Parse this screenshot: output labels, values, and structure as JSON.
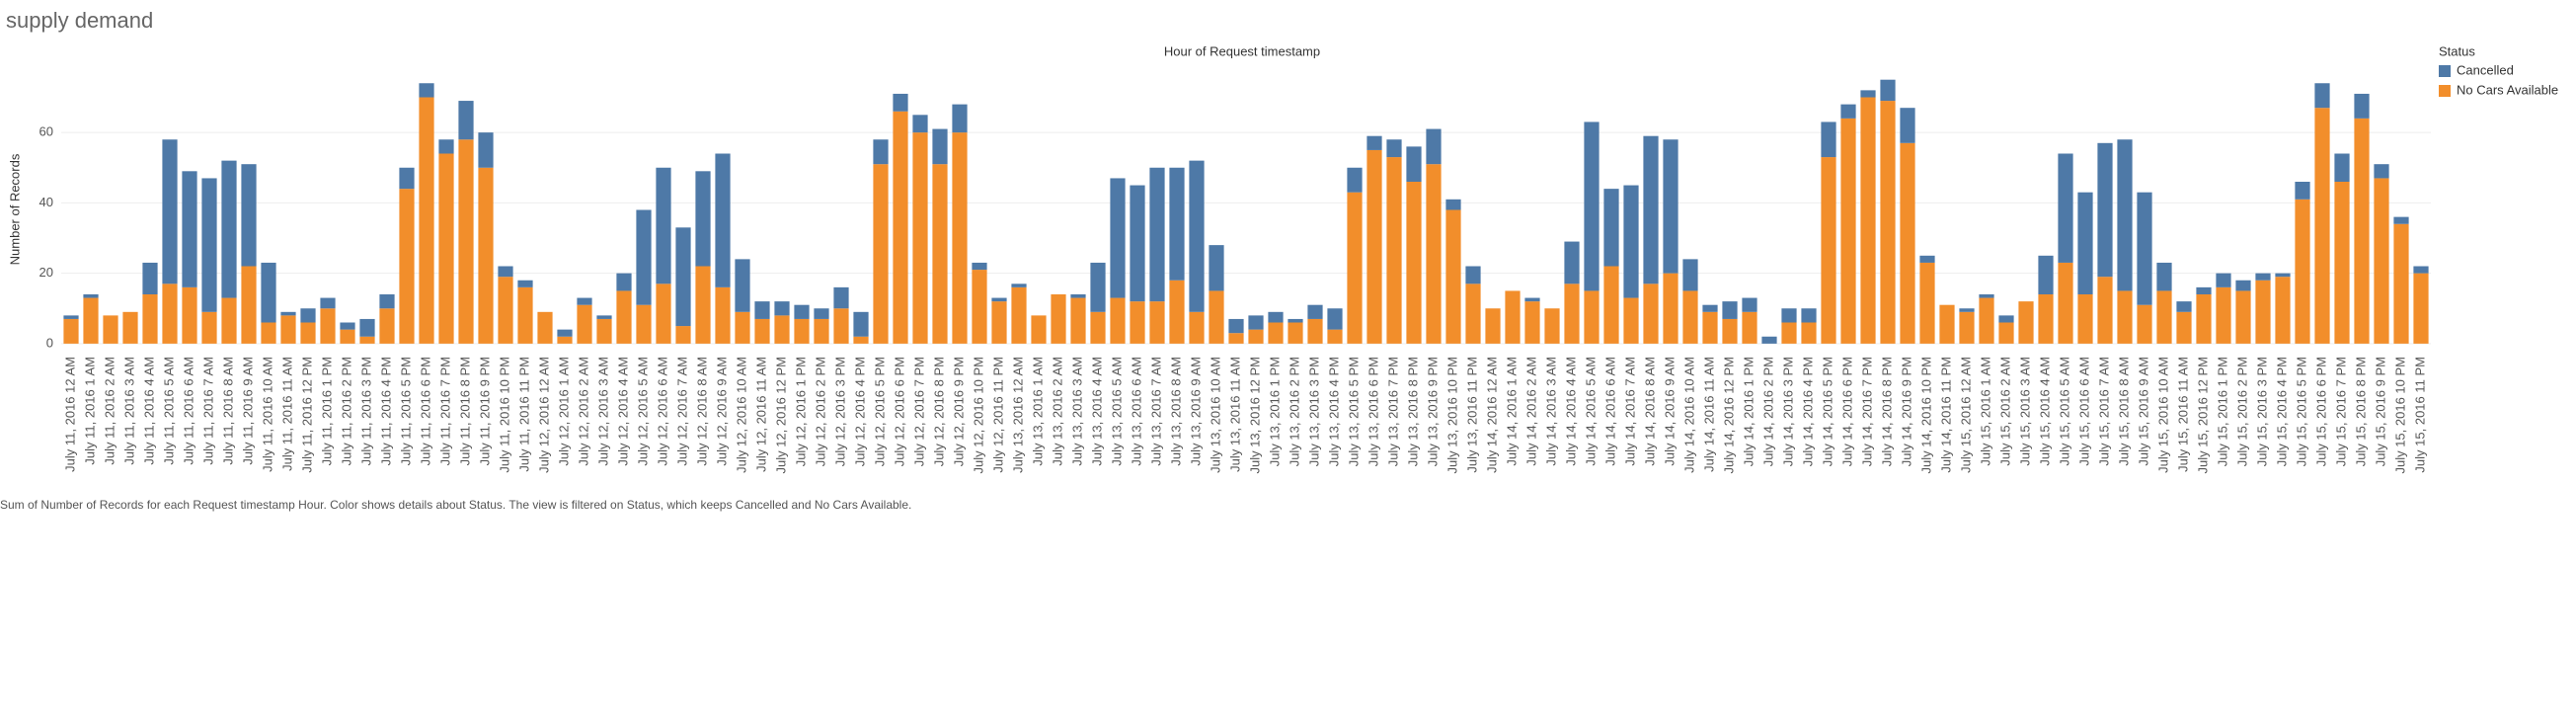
{
  "page_title": "supply demand",
  "caption": "Sum of Number of Records for each Request timestamp Hour.  Color shows details about Status. The view is filtered on Status, which keeps Cancelled and No Cars Available.",
  "chart_data": {
    "type": "stacked_bar",
    "title": "Hour of Request timestamp",
    "y_label": "Number of Records",
    "legend_title": "Status",
    "legend_position": "right",
    "grid": true,
    "ylim": [
      -2,
      78
    ],
    "yticks": [
      0,
      20,
      40,
      60
    ],
    "categories": [
      "July 11, 2016 12 AM",
      "July 11, 2016 1 AM",
      "July 11, 2016 2 AM",
      "July 11, 2016 3 AM",
      "July 11, 2016 4 AM",
      "July 11, 2016 5 AM",
      "July 11, 2016 6 AM",
      "July 11, 2016 7 AM",
      "July 11, 2016 8 AM",
      "July 11, 2016 9 AM",
      "July 11, 2016 10 AM",
      "July 11, 2016 11 AM",
      "July 11, 2016 12 PM",
      "July 11, 2016 1 PM",
      "July 11, 2016 2 PM",
      "July 11, 2016 3 PM",
      "July 11, 2016 4 PM",
      "July 11, 2016 5 PM",
      "July 11, 2016 6 PM",
      "July 11, 2016 7 PM",
      "July 11, 2016 8 PM",
      "July 11, 2016 9 PM",
      "July 11, 2016 10 PM",
      "July 11, 2016 11 PM",
      "July 12, 2016 12 AM",
      "July 12, 2016 1 AM",
      "July 12, 2016 2 AM",
      "July 12, 2016 3 AM",
      "July 12, 2016 4 AM",
      "July 12, 2016 5 AM",
      "July 12, 2016 6 AM",
      "July 12, 2016 7 AM",
      "July 12, 2016 8 AM",
      "July 12, 2016 9 AM",
      "July 12, 2016 10 AM",
      "July 12, 2016 11 AM",
      "July 12, 2016 12 PM",
      "July 12, 2016 1 PM",
      "July 12, 2016 2 PM",
      "July 12, 2016 3 PM",
      "July 12, 2016 4 PM",
      "July 12, 2016 5 PM",
      "July 12, 2016 6 PM",
      "July 12, 2016 7 PM",
      "July 12, 2016 8 PM",
      "July 12, 2016 9 PM",
      "July 12, 2016 10 PM",
      "July 12, 2016 11 PM",
      "July 13, 2016 12 AM",
      "July 13, 2016 1 AM",
      "July 13, 2016 2 AM",
      "July 13, 2016 3 AM",
      "July 13, 2016 4 AM",
      "July 13, 2016 5 AM",
      "July 13, 2016 6 AM",
      "July 13, 2016 7 AM",
      "July 13, 2016 8 AM",
      "July 13, 2016 9 AM",
      "July 13, 2016 10 AM",
      "July 13, 2016 11 AM",
      "July 13, 2016 12 PM",
      "July 13, 2016 1 PM",
      "July 13, 2016 2 PM",
      "July 13, 2016 3 PM",
      "July 13, 2016 4 PM",
      "July 13, 2016 5 PM",
      "July 13, 2016 6 PM",
      "July 13, 2016 7 PM",
      "July 13, 2016 8 PM",
      "July 13, 2016 9 PM",
      "July 13, 2016 10 PM",
      "July 13, 2016 11 PM",
      "July 14, 2016 12 AM",
      "July 14, 2016 1 AM",
      "July 14, 2016 2 AM",
      "July 14, 2016 3 AM",
      "July 14, 2016 4 AM",
      "July 14, 2016 5 AM",
      "July 14, 2016 6 AM",
      "July 14, 2016 7 AM",
      "July 14, 2016 8 AM",
      "July 14, 2016 9 AM",
      "July 14, 2016 10 AM",
      "July 14, 2016 11 AM",
      "July 14, 2016 12 PM",
      "July 14, 2016 1 PM",
      "July 14, 2016 2 PM",
      "July 14, 2016 3 PM",
      "July 14, 2016 4 PM",
      "July 14, 2016 5 PM",
      "July 14, 2016 6 PM",
      "July 14, 2016 7 PM",
      "July 14, 2016 8 PM",
      "July 14, 2016 9 PM",
      "July 14, 2016 10 PM",
      "July 14, 2016 11 PM",
      "July 15, 2016 12 AM",
      "July 15, 2016 1 AM",
      "July 15, 2016 2 AM",
      "July 15, 2016 3 AM",
      "July 15, 2016 4 AM",
      "July 15, 2016 5 AM",
      "July 15, 2016 6 AM",
      "July 15, 2016 7 AM",
      "July 15, 2016 8 AM",
      "July 15, 2016 9 AM",
      "July 15, 2016 10 AM",
      "July 15, 2016 11 AM",
      "July 15, 2016 12 PM",
      "July 15, 2016 1 PM",
      "July 15, 2016 2 PM",
      "July 15, 2016 3 PM",
      "July 15, 2016 4 PM",
      "July 15, 2016 5 PM",
      "July 15, 2016 6 PM",
      "July 15, 2016 7 PM",
      "July 15, 2016 8 PM",
      "July 15, 2016 9 PM",
      "July 15, 2016 10 PM",
      "July 15, 2016 11 PM"
    ],
    "series": [
      {
        "name": "Cancelled",
        "color": "#4e79a7",
        "values": [
          1,
          1,
          0,
          0,
          9,
          41,
          33,
          38,
          39,
          29,
          17,
          1,
          4,
          3,
          2,
          5,
          4,
          6,
          4,
          4,
          11,
          10,
          3,
          2,
          0,
          2,
          2,
          1,
          5,
          27,
          33,
          28,
          27,
          38,
          15,
          5,
          4,
          4,
          3,
          6,
          7,
          7,
          5,
          5,
          10,
          8,
          2,
          1,
          1,
          0,
          0,
          1,
          14,
          34,
          33,
          38,
          32,
          43,
          13,
          4,
          4,
          3,
          1,
          4,
          6,
          7,
          4,
          5,
          10,
          10,
          3,
          5,
          0,
          0,
          1,
          0,
          12,
          48,
          22,
          32,
          42,
          38,
          9,
          2,
          5,
          4,
          2,
          4,
          4,
          10,
          4,
          2,
          6,
          10,
          2,
          0,
          1,
          1,
          2,
          0,
          11,
          31,
          29,
          38,
          43,
          32,
          8,
          3,
          2,
          4,
          3,
          2,
          1,
          5,
          7,
          8,
          7,
          4,
          2,
          2
        ]
      },
      {
        "name": "No Cars Available",
        "color": "#f28e2b",
        "values": [
          7,
          13,
          8,
          9,
          14,
          17,
          16,
          9,
          13,
          22,
          6,
          8,
          6,
          10,
          4,
          2,
          10,
          44,
          70,
          54,
          58,
          50,
          19,
          16,
          9,
          2,
          11,
          7,
          15,
          11,
          17,
          5,
          22,
          16,
          9,
          7,
          8,
          7,
          7,
          10,
          2,
          51,
          66,
          60,
          51,
          60,
          21,
          12,
          16,
          8,
          14,
          13,
          9,
          13,
          12,
          12,
          18,
          9,
          15,
          3,
          4,
          6,
          6,
          7,
          4,
          43,
          55,
          53,
          46,
          51,
          38,
          17,
          10,
          15,
          12,
          10,
          17,
          15,
          22,
          13,
          17,
          20,
          15,
          9,
          7,
          9,
          0,
          6,
          6,
          53,
          64,
          70,
          69,
          57,
          23,
          11,
          9,
          13,
          6,
          12,
          14,
          23,
          14,
          19,
          15,
          11,
          15,
          9,
          14,
          16,
          15,
          18,
          19,
          41,
          67,
          46,
          64,
          47,
          34,
          20
        ]
      }
    ]
  }
}
